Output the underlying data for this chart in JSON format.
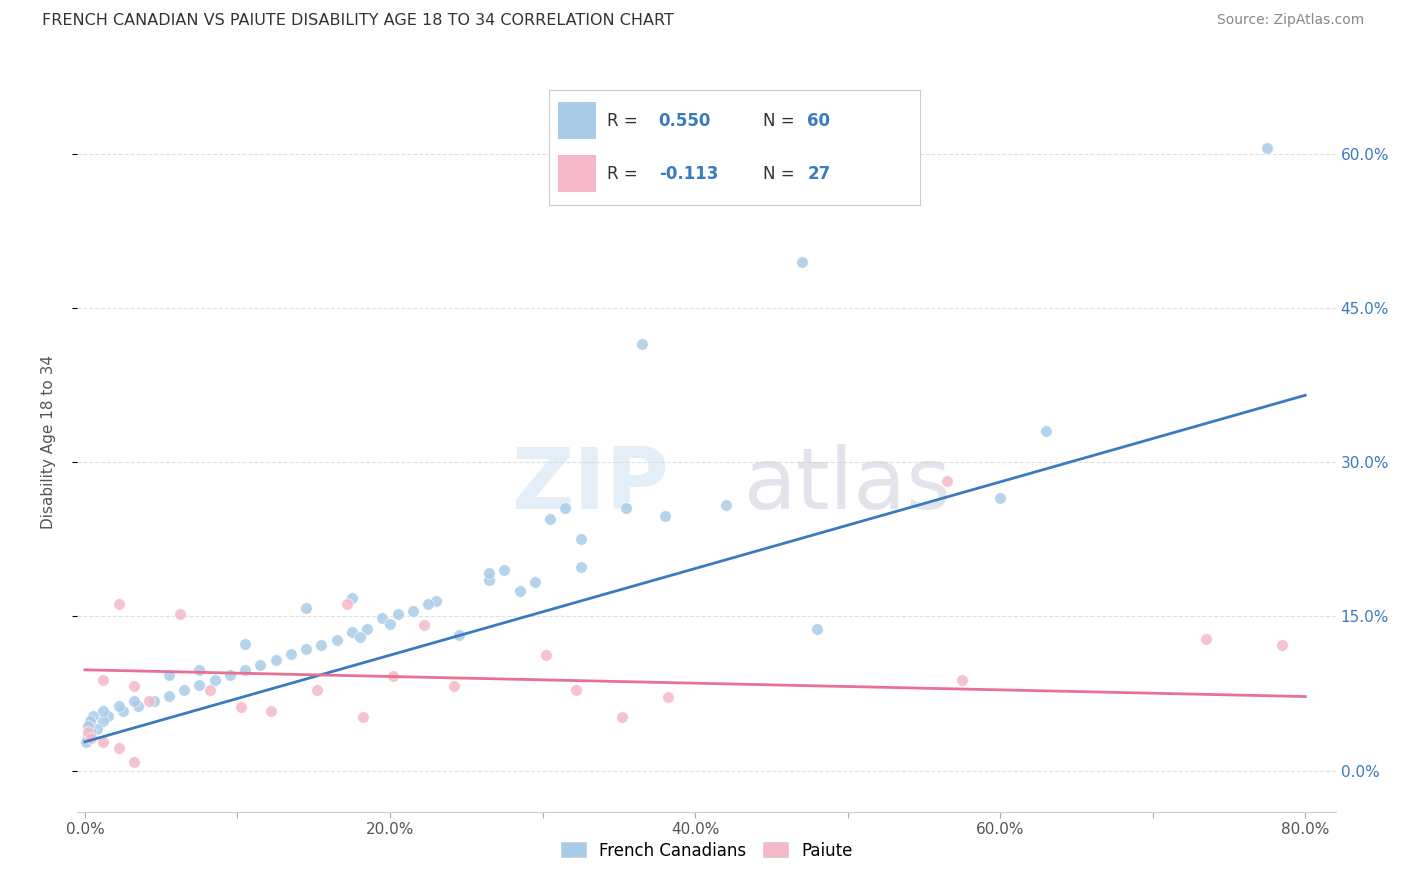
{
  "title": "FRENCH CANADIAN VS PAIUTE DISABILITY AGE 18 TO 34 CORRELATION CHART",
  "source": "Source: ZipAtlas.com",
  "ylabel": "Disability Age 18 to 34",
  "watermark_zip": "ZIP",
  "watermark_atlas": "atlas",
  "xlim": [
    -0.005,
    0.82
  ],
  "ylim": [
    -0.04,
    0.68
  ],
  "xtick_labels": [
    "0.0%",
    "",
    "20.0%",
    "",
    "40.0%",
    "",
    "60.0%",
    "",
    "80.0%"
  ],
  "xtick_values": [
    0.0,
    0.1,
    0.2,
    0.3,
    0.4,
    0.5,
    0.6,
    0.7,
    0.8
  ],
  "xtick_display": [
    true,
    false,
    true,
    false,
    true,
    false,
    true,
    false,
    true
  ],
  "ytick_labels_right": [
    "60.0%",
    "45.0%",
    "30.0%",
    "15.0%",
    "0.0%"
  ],
  "ytick_values_right": [
    0.6,
    0.45,
    0.3,
    0.15,
    0.0
  ],
  "legend_blue_r": "0.550",
  "legend_blue_n": "60",
  "legend_pink_r": "-0.113",
  "legend_pink_n": "27",
  "legend_label1": "French Canadians",
  "legend_label2": "Paiute",
  "blue_color": "#a8cce8",
  "pink_color": "#f4b8c8",
  "blue_line_color": "#3a7bbf",
  "pink_line_color": "#e87090",
  "blue_legend_color": "#a8cce8",
  "pink_legend_color": "#f4b8c8",
  "r_value_color": "#3a7bbf",
  "title_color": "#333333",
  "source_color": "#888888",
  "blue_scatter_x": [
    0.775,
    0.47,
    0.365,
    0.315,
    0.305,
    0.325,
    0.275,
    0.265,
    0.285,
    0.23,
    0.225,
    0.215,
    0.205,
    0.195,
    0.2,
    0.185,
    0.175,
    0.18,
    0.165,
    0.155,
    0.145,
    0.135,
    0.125,
    0.115,
    0.105,
    0.095,
    0.085,
    0.075,
    0.065,
    0.055,
    0.045,
    0.035,
    0.025,
    0.015,
    0.012,
    0.008,
    0.004,
    0.002,
    0.63,
    0.6,
    0.245,
    0.355,
    0.38,
    0.265,
    0.42,
    0.48,
    0.325,
    0.295,
    0.175,
    0.145,
    0.105,
    0.075,
    0.055,
    0.032,
    0.022,
    0.012,
    0.005,
    0.003,
    0.002,
    0.001
  ],
  "blue_scatter_y": [
    0.605,
    0.495,
    0.415,
    0.255,
    0.245,
    0.225,
    0.195,
    0.185,
    0.175,
    0.165,
    0.162,
    0.155,
    0.152,
    0.148,
    0.143,
    0.138,
    0.135,
    0.13,
    0.127,
    0.122,
    0.118,
    0.113,
    0.108,
    0.103,
    0.098,
    0.093,
    0.088,
    0.083,
    0.078,
    0.073,
    0.068,
    0.063,
    0.058,
    0.053,
    0.048,
    0.04,
    0.038,
    0.033,
    0.33,
    0.265,
    0.132,
    0.255,
    0.248,
    0.192,
    0.258,
    0.138,
    0.198,
    0.183,
    0.168,
    0.158,
    0.123,
    0.098,
    0.093,
    0.068,
    0.063,
    0.058,
    0.053,
    0.048,
    0.043,
    0.028
  ],
  "pink_scatter_x": [
    0.785,
    0.735,
    0.575,
    0.565,
    0.012,
    0.032,
    0.042,
    0.102,
    0.122,
    0.152,
    0.172,
    0.182,
    0.202,
    0.222,
    0.242,
    0.022,
    0.062,
    0.082,
    0.302,
    0.322,
    0.352,
    0.382,
    0.002,
    0.004,
    0.012,
    0.022,
    0.032
  ],
  "pink_scatter_y": [
    0.122,
    0.128,
    0.088,
    0.282,
    0.088,
    0.082,
    0.068,
    0.062,
    0.058,
    0.078,
    0.162,
    0.052,
    0.092,
    0.142,
    0.082,
    0.162,
    0.152,
    0.078,
    0.112,
    0.078,
    0.052,
    0.072,
    0.038,
    0.032,
    0.028,
    0.022,
    0.008
  ],
  "blue_trendline_x": [
    0.0,
    0.8
  ],
  "blue_trendline_y": [
    0.028,
    0.365
  ],
  "pink_trendline_x": [
    0.0,
    0.8
  ],
  "pink_trendline_y": [
    0.098,
    0.072
  ],
  "background_color": "#ffffff",
  "grid_color": "#e0e0e0",
  "figsize": [
    14.06,
    8.92
  ]
}
